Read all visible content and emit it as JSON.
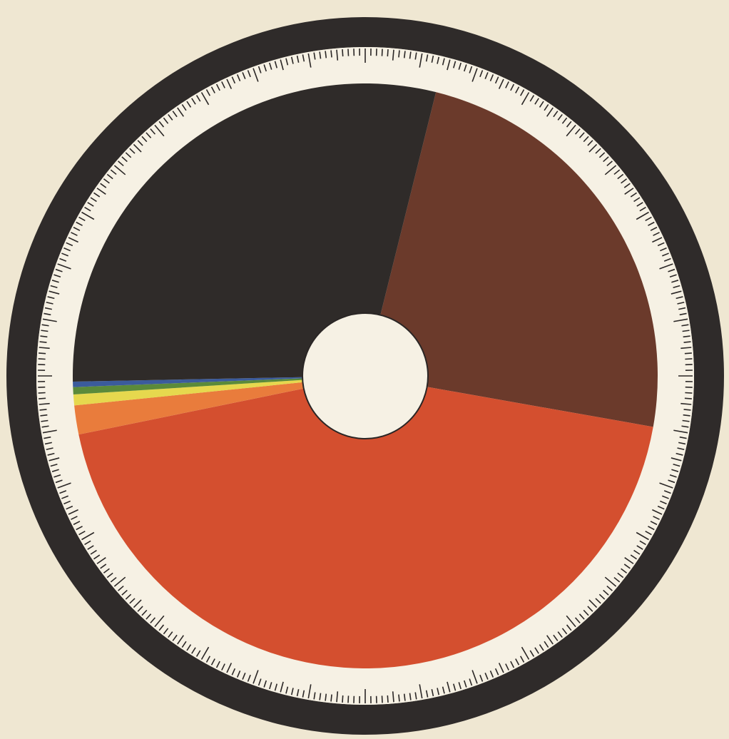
{
  "chart_data": {
    "type": "donut",
    "values": [
      23.9,
      44.0,
      1.6,
      0.6,
      0.4,
      0.3,
      29.2
    ],
    "colors": [
      "#6b3a2b",
      "#d44f2f",
      "#e97c3c",
      "#e6d84e",
      "#5b8a3a",
      "#3b5b9c",
      "#2f2b29"
    ]
  }
}
